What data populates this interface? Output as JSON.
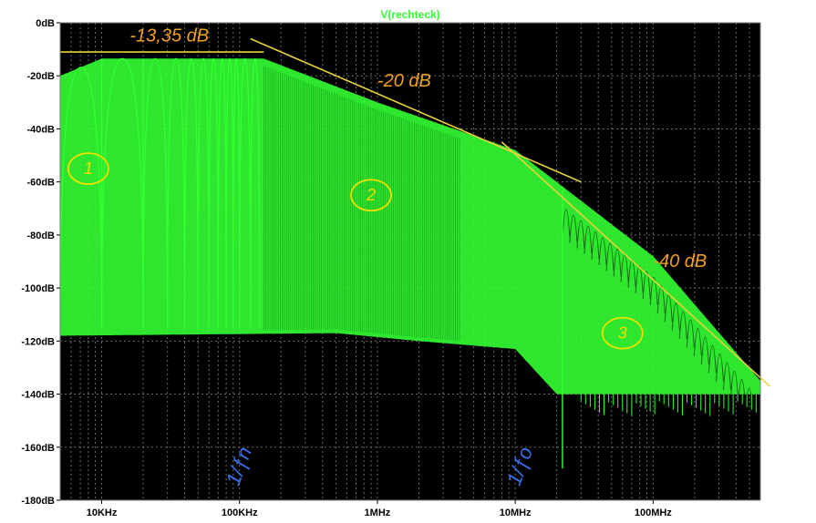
{
  "chart_data": {
    "type": "line",
    "title": "V(rechteck)",
    "xlabel": "",
    "ylabel": "",
    "x_scale": "log",
    "xlim": [
      5000,
      600000000
    ],
    "ylim": [
      -180,
      0
    ],
    "x_ticks": [
      {
        "value": 10000,
        "label": "10KHz"
      },
      {
        "value": 100000,
        "label": "100KHz"
      },
      {
        "value": 1000000,
        "label": "1MHz"
      },
      {
        "value": 10000000,
        "label": "10MHz"
      },
      {
        "value": 100000000,
        "label": "100MHz"
      }
    ],
    "y_ticks": [
      {
        "value": 0,
        "label": "0dB"
      },
      {
        "value": -20,
        "label": "-20dB"
      },
      {
        "value": -40,
        "label": "-40dB"
      },
      {
        "value": -60,
        "label": "-60dB"
      },
      {
        "value": -80,
        "label": "-80dB"
      },
      {
        "value": -100,
        "label": "-100dB"
      },
      {
        "value": -120,
        "label": "-120dB"
      },
      {
        "value": -140,
        "label": "-140dB"
      },
      {
        "value": -160,
        "label": "-160dB"
      },
      {
        "value": -180,
        "label": "-180dB"
      }
    ],
    "grid": true,
    "colors": {
      "background": "#000000",
      "series": "#33ff33",
      "title": "#33ff33",
      "grid": "#6a6a6a",
      "annotation_line": "#e8d23a",
      "annotation_orange": "#f0a020",
      "annotation_yellow": "#f0e000",
      "annotation_blue": "#3a6ee8"
    },
    "series": [
      {
        "name": "V(rechteck)",
        "envelope_top": [
          {
            "x": 5000,
            "y": -20
          },
          {
            "x": 10000,
            "y": -13.5
          },
          {
            "x": 150000,
            "y": -13.5
          },
          {
            "x": 1000000,
            "y": -30
          },
          {
            "x": 10000000,
            "y": -48
          },
          {
            "x": 100000000,
            "y": -88
          },
          {
            "x": 600000000,
            "y": -135
          }
        ],
        "envelope_bottom": [
          {
            "x": 5000,
            "y": -118
          },
          {
            "x": 500000,
            "y": -117
          },
          {
            "x": 2000000,
            "y": -120
          },
          {
            "x": 10000000,
            "y": -123
          },
          {
            "x": 20000000,
            "y": -140
          },
          {
            "x": 60000000,
            "y": -140
          },
          {
            "x": 600000000,
            "y": -140
          }
        ],
        "notches": [
          {
            "x": 10000,
            "y": -115
          },
          {
            "x": 20000,
            "y": -115
          },
          {
            "x": 22000000,
            "y": -168
          }
        ]
      }
    ],
    "annotations": {
      "lines": [
        {
          "label": "-13,35 dB",
          "from": {
            "x": 5000,
            "y": -11
          },
          "to": {
            "x": 150000,
            "y": -11
          }
        },
        {
          "label": "-20 dB",
          "from": {
            "x": 120000,
            "y": -6
          },
          "to": {
            "x": 30000000,
            "y": -60
          }
        },
        {
          "label": "-40 dB",
          "from": {
            "x": 8000000,
            "y": -45
          },
          "to": {
            "x": 700000000,
            "y": -137
          }
        }
      ],
      "text": [
        {
          "text": "-13,35 dB",
          "x": 16000,
          "y": -7
        },
        {
          "text": "-20 dB",
          "x": 1000000,
          "y": -24
        },
        {
          "text": "-40 dB",
          "x": 100000000,
          "y": -92
        }
      ],
      "regions": [
        {
          "text": "1",
          "x": 8000,
          "y": -55
        },
        {
          "text": "2",
          "x": 900000,
          "y": -65
        },
        {
          "text": "3",
          "x": 60000000,
          "y": -117
        }
      ],
      "marks": [
        {
          "text": "1/ƒn",
          "x": 110000,
          "y": -168
        },
        {
          "text": "1/ƒo",
          "x": 12000000,
          "y": -168
        }
      ]
    }
  }
}
